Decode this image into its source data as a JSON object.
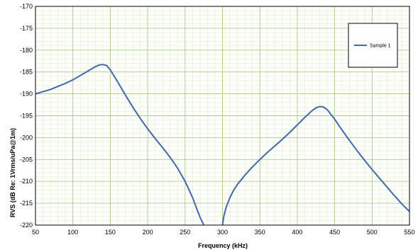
{
  "chart_data": {
    "type": "line",
    "xlabel": "Frequency (kHz)",
    "ylabel": "RVS (dB  Re: 1Vrms/uPa@1m)",
    "xlim": [
      50,
      550
    ],
    "ylim": [
      -220,
      -170
    ],
    "xticks": [
      50,
      100,
      150,
      200,
      250,
      300,
      350,
      400,
      450,
      500,
      550
    ],
    "yticks": [
      -170,
      -175,
      -180,
      -185,
      -190,
      -195,
      -200,
      -205,
      -210,
      -215,
      -220
    ],
    "x_minor_step": 10,
    "y_minor_step": 1,
    "grid": true,
    "legend_position": "top-right",
    "colors": {
      "line": "#4466aa",
      "major_grid": "#a9cf7f",
      "minor_grid": "#dcefc5",
      "frame": "#000000"
    },
    "series": [
      {
        "name": "Sample 1",
        "segments": [
          {
            "x": [
              50,
              60,
              70,
              80,
              90,
              100,
              110,
              120,
              130,
              135,
              140,
              145,
              150,
              160,
              170,
              180,
              190,
              200,
              210,
              220,
              230,
              240,
              250,
              260,
              265,
              270,
              275,
              278,
              280
            ],
            "y": [
              -190.0,
              -189.5,
              -189.0,
              -188.3,
              -187.6,
              -186.8,
              -185.8,
              -184.8,
              -183.8,
              -183.4,
              -183.3,
              -183.5,
              -184.5,
              -187.3,
              -190.2,
              -193.0,
              -195.6,
              -198.0,
              -200.2,
              -202.3,
              -204.5,
              -207.0,
              -210.0,
              -213.7,
              -216.0,
              -218.2,
              -220.0,
              -221.5,
              -223.0
            ]
          },
          {
            "x": [
              298,
              300,
              302,
              305,
              310,
              315,
              320,
              330,
              340,
              350,
              360,
              370,
              380,
              390,
              400,
              410,
              420,
              425,
              430,
              435,
              440,
              450,
              460,
              470,
              480,
              490,
              500,
              510,
              520,
              530,
              540,
              550
            ],
            "y": [
              -223.0,
              -220.0,
              -217.8,
              -215.9,
              -213.7,
              -212.0,
              -210.7,
              -208.6,
              -206.7,
              -205.0,
              -203.4,
              -201.9,
              -200.4,
              -198.8,
              -197.1,
              -195.4,
              -193.8,
              -193.2,
              -192.9,
              -193.0,
              -193.6,
              -195.8,
              -198.3,
              -200.7,
              -203.0,
              -205.2,
              -207.3,
              -209.3,
              -211.3,
              -213.3,
              -215.2,
              -216.9
            ]
          }
        ]
      }
    ]
  }
}
